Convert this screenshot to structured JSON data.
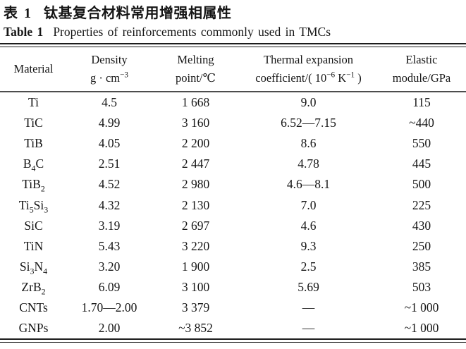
{
  "title": {
    "zh_label": "表 1",
    "zh_text": "钛基复合材料常用增强相属性",
    "en_label": "Table 1",
    "en_text": "Properties of reinforcements commonly used in TMCs"
  },
  "table": {
    "columns": [
      {
        "id": "material",
        "line1": "Material",
        "line2": ""
      },
      {
        "id": "density",
        "line1": "Density",
        "line2": "g · cm^−3^"
      },
      {
        "id": "melting-point",
        "line1": "Melting",
        "line2": "point/℃"
      },
      {
        "id": "thermal-expansion",
        "line1": "Thermal expansion",
        "line2": "coefficient/( 10^−6^ K^−1^ )"
      },
      {
        "id": "elastic-module",
        "line1": "Elastic",
        "line2": "module/GPa"
      }
    ],
    "rows": [
      [
        "Ti",
        "4.5",
        "1 668",
        "9.0",
        "115"
      ],
      [
        "TiC",
        "4.99",
        "3 160",
        "6.52—7.15",
        "~440"
      ],
      [
        "TiB",
        "4.05",
        "2 200",
        "8.6",
        "550"
      ],
      [
        "B_4_C",
        "2.51",
        "2 447",
        "4.78",
        "445"
      ],
      [
        "TiB_2_",
        "4.52",
        "2 980",
        "4.6—8.1",
        "500"
      ],
      [
        "Ti_5_Si_3_",
        "4.32",
        "2 130",
        "7.0",
        "225"
      ],
      [
        "SiC",
        "3.19",
        "2 697",
        "4.6",
        "430"
      ],
      [
        "TiN",
        "5.43",
        "3 220",
        "9.3",
        "250"
      ],
      [
        "Si_3_N_4_",
        "3.20",
        "1 900",
        "2.5",
        "385"
      ],
      [
        "ZrB_2_",
        "6.09",
        "3 100",
        "5.69",
        "503"
      ],
      [
        "CNTs",
        "1.70—2.00",
        "3 379",
        "—",
        "~1 000"
      ],
      [
        "GNPs",
        "2.00",
        "~3 852",
        "—",
        "~1 000"
      ]
    ]
  }
}
